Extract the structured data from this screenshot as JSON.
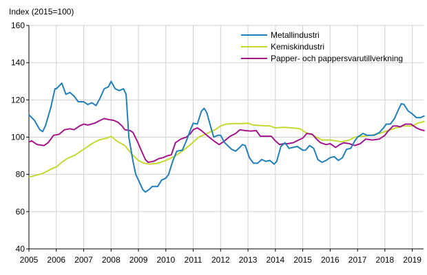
{
  "chart_data": {
    "type": "line",
    "ylabel": "Index (2015=100)",
    "xlim": [
      2005,
      2019.45
    ],
    "ylim": [
      40,
      160
    ],
    "yticks": [
      40,
      60,
      80,
      100,
      120,
      140,
      160
    ],
    "xticks": [
      "2005",
      "2006",
      "2007",
      "2008",
      "2009",
      "2010",
      "2011",
      "2012",
      "2013",
      "2014",
      "2015",
      "2016",
      "2017",
      "2018",
      "2019"
    ],
    "grid": true,
    "legend_position": "top-right",
    "series": [
      {
        "name": "Metallindustri",
        "color": "#1f7fb9",
        "points": [
          [
            2005.0,
            112
          ],
          [
            2005.2,
            109
          ],
          [
            2005.4,
            104
          ],
          [
            2005.5,
            103
          ],
          [
            2005.6,
            106
          ],
          [
            2005.8,
            116
          ],
          [
            2005.95,
            126
          ],
          [
            2006.0,
            126
          ],
          [
            2006.2,
            129
          ],
          [
            2006.35,
            123
          ],
          [
            2006.5,
            124
          ],
          [
            2006.65,
            122
          ],
          [
            2006.8,
            119
          ],
          [
            2007.0,
            119
          ],
          [
            2007.15,
            117.5
          ],
          [
            2007.3,
            118.5
          ],
          [
            2007.45,
            117
          ],
          [
            2007.6,
            121
          ],
          [
            2007.75,
            126
          ],
          [
            2007.9,
            127
          ],
          [
            2008.0,
            130
          ],
          [
            2008.15,
            126
          ],
          [
            2008.3,
            125
          ],
          [
            2008.45,
            126
          ],
          [
            2008.55,
            123
          ],
          [
            2008.65,
            100
          ],
          [
            2008.8,
            87
          ],
          [
            2008.9,
            80
          ],
          [
            2009.0,
            77
          ],
          [
            2009.15,
            72
          ],
          [
            2009.25,
            70.5
          ],
          [
            2009.4,
            72
          ],
          [
            2009.5,
            73.5
          ],
          [
            2009.7,
            73.5
          ],
          [
            2009.85,
            77
          ],
          [
            2010.0,
            78
          ],
          [
            2010.1,
            80
          ],
          [
            2010.25,
            87
          ],
          [
            2010.4,
            92.5
          ],
          [
            2010.6,
            93
          ],
          [
            2010.75,
            98
          ],
          [
            2010.9,
            104
          ],
          [
            2011.0,
            107.5
          ],
          [
            2011.15,
            107
          ],
          [
            2011.3,
            114
          ],
          [
            2011.4,
            115.5
          ],
          [
            2011.5,
            113
          ],
          [
            2011.65,
            105
          ],
          [
            2011.75,
            100
          ],
          [
            2011.9,
            101
          ],
          [
            2012.0,
            101
          ],
          [
            2012.15,
            97
          ],
          [
            2012.4,
            93.5
          ],
          [
            2012.55,
            92.5
          ],
          [
            2012.7,
            94.5
          ],
          [
            2012.8,
            96
          ],
          [
            2012.9,
            95.5
          ],
          [
            2013.05,
            89
          ],
          [
            2013.2,
            86
          ],
          [
            2013.35,
            86
          ],
          [
            2013.5,
            88
          ],
          [
            2013.65,
            87
          ],
          [
            2013.8,
            87.5
          ],
          [
            2013.95,
            85.5
          ],
          [
            2014.05,
            87
          ],
          [
            2014.2,
            95
          ],
          [
            2014.35,
            97
          ],
          [
            2014.5,
            94
          ],
          [
            2014.65,
            94.5
          ],
          [
            2014.8,
            95
          ],
          [
            2015.0,
            93
          ],
          [
            2015.1,
            93
          ],
          [
            2015.25,
            95.5
          ],
          [
            2015.4,
            94
          ],
          [
            2015.55,
            88
          ],
          [
            2015.7,
            86.5
          ],
          [
            2015.85,
            87.5
          ],
          [
            2016.0,
            89
          ],
          [
            2016.15,
            89.5
          ],
          [
            2016.3,
            87.5
          ],
          [
            2016.45,
            89
          ],
          [
            2016.6,
            93.5
          ],
          [
            2016.75,
            94
          ],
          [
            2016.9,
            98
          ],
          [
            2017.0,
            100
          ],
          [
            2017.1,
            101
          ],
          [
            2017.2,
            102
          ],
          [
            2017.35,
            101
          ],
          [
            2017.6,
            101
          ],
          [
            2017.8,
            102.5
          ],
          [
            2017.95,
            105
          ],
          [
            2018.05,
            107
          ],
          [
            2018.2,
            107
          ],
          [
            2018.35,
            110
          ],
          [
            2018.5,
            115
          ],
          [
            2018.6,
            118
          ],
          [
            2018.7,
            117.5
          ],
          [
            2018.85,
            114
          ],
          [
            2019.0,
            112.5
          ],
          [
            2019.15,
            110.5
          ],
          [
            2019.3,
            110.5
          ],
          [
            2019.45,
            111.5
          ]
        ]
      },
      {
        "name": "Kemiskindustri",
        "color": "#c3d930",
        "points": [
          [
            2005.0,
            78.5
          ],
          [
            2005.5,
            80.5
          ],
          [
            2005.9,
            83.5
          ],
          [
            2006.0,
            84
          ],
          [
            2006.2,
            86.5
          ],
          [
            2006.4,
            88.5
          ],
          [
            2006.7,
            90.5
          ],
          [
            2007.0,
            93.5
          ],
          [
            2007.3,
            96.5
          ],
          [
            2007.55,
            98.5
          ],
          [
            2007.85,
            99.5
          ],
          [
            2008.0,
            100.5
          ],
          [
            2008.2,
            98
          ],
          [
            2008.5,
            95.5
          ],
          [
            2008.75,
            91
          ],
          [
            2009.0,
            87.5
          ],
          [
            2009.2,
            86
          ],
          [
            2009.4,
            85.5
          ],
          [
            2009.7,
            86
          ],
          [
            2010.0,
            87.5
          ],
          [
            2010.3,
            89.5
          ],
          [
            2010.6,
            92.5
          ],
          [
            2010.9,
            96
          ],
          [
            2011.2,
            100
          ],
          [
            2011.5,
            102
          ],
          [
            2011.8,
            104
          ],
          [
            2012.0,
            106
          ],
          [
            2012.2,
            107
          ],
          [
            2012.5,
            107.3
          ],
          [
            2012.8,
            107.3
          ],
          [
            2013.0,
            107.5
          ],
          [
            2013.2,
            106.5
          ],
          [
            2013.5,
            106.2
          ],
          [
            2013.8,
            106
          ],
          [
            2014.0,
            105
          ],
          [
            2014.3,
            105.3
          ],
          [
            2014.6,
            105
          ],
          [
            2014.9,
            104.5
          ],
          [
            2015.1,
            102.5
          ],
          [
            2015.3,
            101.5
          ],
          [
            2015.5,
            100
          ],
          [
            2015.7,
            98.5
          ],
          [
            2016.0,
            98.5
          ],
          [
            2016.2,
            98
          ],
          [
            2016.4,
            97.5
          ],
          [
            2016.7,
            98.5
          ],
          [
            2016.9,
            100
          ],
          [
            2017.2,
            100.5
          ],
          [
            2017.5,
            101
          ],
          [
            2017.8,
            102
          ],
          [
            2018.1,
            103.5
          ],
          [
            2018.4,
            105
          ],
          [
            2018.7,
            106
          ],
          [
            2019.0,
            106
          ],
          [
            2019.2,
            107.5
          ],
          [
            2019.45,
            108.5
          ]
        ]
      },
      {
        "name": "Papper- och pappersvarutillverkning",
        "color": "#a3158c",
        "points": [
          [
            2005.0,
            97.5
          ],
          [
            2005.1,
            98
          ],
          [
            2005.3,
            96
          ],
          [
            2005.55,
            95.5
          ],
          [
            2005.7,
            97
          ],
          [
            2005.9,
            101
          ],
          [
            2006.1,
            101.5
          ],
          [
            2006.3,
            104
          ],
          [
            2006.5,
            104.5
          ],
          [
            2006.65,
            104
          ],
          [
            2006.85,
            106
          ],
          [
            2007.0,
            107
          ],
          [
            2007.15,
            106.5
          ],
          [
            2007.4,
            107.5
          ],
          [
            2007.6,
            109
          ],
          [
            2007.75,
            110
          ],
          [
            2007.9,
            109.5
          ],
          [
            2008.1,
            109
          ],
          [
            2008.25,
            108
          ],
          [
            2008.4,
            106
          ],
          [
            2008.5,
            104
          ],
          [
            2008.7,
            103.5
          ],
          [
            2008.8,
            102.5
          ],
          [
            2008.95,
            98
          ],
          [
            2009.1,
            93
          ],
          [
            2009.25,
            88
          ],
          [
            2009.35,
            86.5
          ],
          [
            2009.55,
            87
          ],
          [
            2009.75,
            88.5
          ],
          [
            2009.9,
            89
          ],
          [
            2010.05,
            90
          ],
          [
            2010.2,
            90.5
          ],
          [
            2010.35,
            97
          ],
          [
            2010.55,
            99
          ],
          [
            2010.75,
            100
          ],
          [
            2010.9,
            102
          ],
          [
            2011.0,
            104
          ],
          [
            2011.15,
            105
          ],
          [
            2011.3,
            103.5
          ],
          [
            2011.5,
            101
          ],
          [
            2011.75,
            98
          ],
          [
            2011.95,
            96
          ],
          [
            2012.1,
            97.5
          ],
          [
            2012.35,
            100.5
          ],
          [
            2012.55,
            102
          ],
          [
            2012.7,
            104
          ],
          [
            2012.9,
            103.5
          ],
          [
            2013.1,
            103.3
          ],
          [
            2013.3,
            103.5
          ],
          [
            2013.45,
            100.5
          ],
          [
            2013.7,
            100.5
          ],
          [
            2013.85,
            100.5
          ],
          [
            2014.0,
            98
          ],
          [
            2014.15,
            96
          ],
          [
            2014.3,
            96.5
          ],
          [
            2014.45,
            96.5
          ],
          [
            2014.65,
            97
          ],
          [
            2014.85,
            98.5
          ],
          [
            2015.0,
            99.5
          ],
          [
            2015.15,
            102
          ],
          [
            2015.35,
            101.5
          ],
          [
            2015.5,
            99
          ],
          [
            2015.65,
            97
          ],
          [
            2015.85,
            96
          ],
          [
            2016.0,
            96.5
          ],
          [
            2016.2,
            94.5
          ],
          [
            2016.35,
            96
          ],
          [
            2016.5,
            97
          ],
          [
            2016.7,
            96.5
          ],
          [
            2016.9,
            95.5
          ],
          [
            2017.1,
            96.5
          ],
          [
            2017.3,
            99
          ],
          [
            2017.55,
            98.5
          ],
          [
            2017.8,
            99
          ],
          [
            2018.0,
            101
          ],
          [
            2018.1,
            103
          ],
          [
            2018.3,
            106
          ],
          [
            2018.45,
            106
          ],
          [
            2018.55,
            105.5
          ],
          [
            2018.75,
            107
          ],
          [
            2018.95,
            107
          ],
          [
            2019.15,
            105
          ],
          [
            2019.3,
            104
          ],
          [
            2019.45,
            103.5
          ]
        ]
      }
    ]
  }
}
